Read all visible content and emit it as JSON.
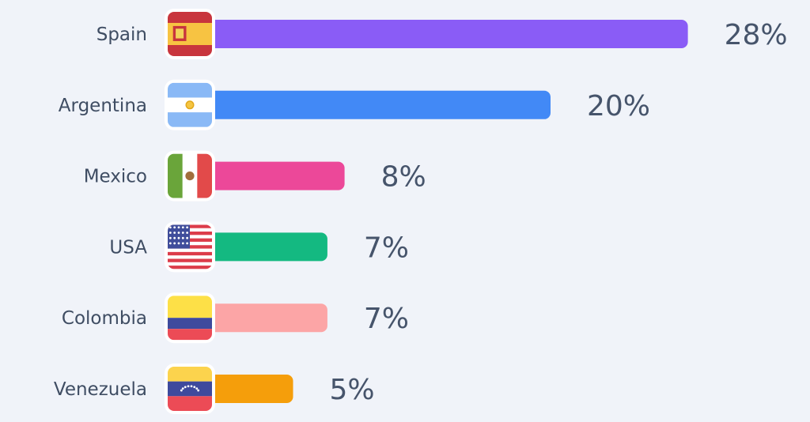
{
  "chart_data": {
    "type": "bar",
    "orientation": "horizontal",
    "categories": [
      "Spain",
      "Argentina",
      "Mexico",
      "USA",
      "Colombia",
      "Venezuela"
    ],
    "values": [
      28,
      20,
      8,
      7,
      7,
      5
    ],
    "labels": [
      "28%",
      "20%",
      "8%",
      "7%",
      "7%",
      "5%"
    ],
    "unit": "%",
    "bar_colors": [
      "#8a5cf6",
      "#4289f6",
      "#ec4899",
      "#14b981",
      "#fca5a6",
      "#f59e0b"
    ],
    "flag_icons": [
      "flag-spain-icon",
      "flag-argentina-icon",
      "flag-mexico-icon",
      "flag-usa-icon",
      "flag-colombia-icon",
      "flag-venezuela-icon"
    ],
    "grid": false,
    "legend": "none"
  }
}
